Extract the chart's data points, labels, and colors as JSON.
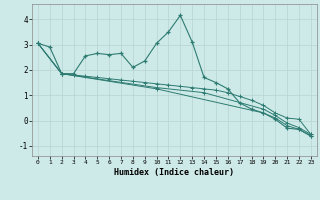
{
  "xlabel": "Humidex (Indice chaleur)",
  "background_color": "#ceeae8",
  "grid_color": "#b8d4d2",
  "line_color": "#2d7b72",
  "xlim": [
    -0.5,
    23.5
  ],
  "ylim": [
    -1.4,
    4.6
  ],
  "xticks": [
    0,
    1,
    2,
    3,
    4,
    5,
    6,
    7,
    8,
    9,
    10,
    11,
    12,
    13,
    14,
    15,
    16,
    17,
    18,
    19,
    20,
    21,
    22,
    23
  ],
  "yticks": [
    -1,
    0,
    1,
    2,
    3,
    4
  ],
  "series1": [
    [
      0,
      3.05
    ],
    [
      1,
      2.9
    ],
    [
      2,
      1.85
    ],
    [
      3,
      1.85
    ],
    [
      4,
      2.55
    ],
    [
      5,
      2.65
    ],
    [
      6,
      2.6
    ],
    [
      7,
      2.65
    ],
    [
      8,
      2.1
    ],
    [
      9,
      2.35
    ],
    [
      10,
      3.05
    ],
    [
      11,
      3.5
    ],
    [
      12,
      4.15
    ],
    [
      13,
      3.1
    ],
    [
      14,
      1.7
    ],
    [
      15,
      1.5
    ],
    [
      16,
      1.25
    ],
    [
      17,
      0.7
    ],
    [
      18,
      0.45
    ],
    [
      19,
      0.3
    ],
    [
      20,
      0.05
    ],
    [
      21,
      -0.3
    ],
    [
      22,
      -0.35
    ],
    [
      23,
      -0.6
    ]
  ],
  "series2": [
    [
      0,
      3.05
    ],
    [
      2,
      1.85
    ],
    [
      3,
      1.8
    ],
    [
      4,
      1.75
    ],
    [
      5,
      1.7
    ],
    [
      6,
      1.65
    ],
    [
      7,
      1.6
    ],
    [
      8,
      1.55
    ],
    [
      9,
      1.5
    ],
    [
      10,
      1.45
    ],
    [
      11,
      1.4
    ],
    [
      12,
      1.35
    ],
    [
      13,
      1.3
    ],
    [
      14,
      1.25
    ],
    [
      15,
      1.2
    ],
    [
      16,
      1.1
    ],
    [
      17,
      0.95
    ],
    [
      18,
      0.8
    ],
    [
      19,
      0.6
    ],
    [
      20,
      0.3
    ],
    [
      21,
      0.1
    ],
    [
      22,
      0.05
    ],
    [
      23,
      -0.55
    ]
  ],
  "series3": [
    [
      0,
      3.05
    ],
    [
      2,
      1.85
    ],
    [
      10,
      1.3
    ],
    [
      14,
      1.1
    ],
    [
      19,
      0.45
    ],
    [
      20,
      0.2
    ],
    [
      21,
      -0.1
    ],
    [
      22,
      -0.28
    ],
    [
      23,
      -0.55
    ]
  ],
  "series4": [
    [
      0,
      3.05
    ],
    [
      2,
      1.85
    ],
    [
      10,
      1.25
    ],
    [
      19,
      0.3
    ],
    [
      20,
      0.1
    ],
    [
      21,
      -0.2
    ],
    [
      22,
      -0.35
    ],
    [
      23,
      -0.62
    ]
  ]
}
